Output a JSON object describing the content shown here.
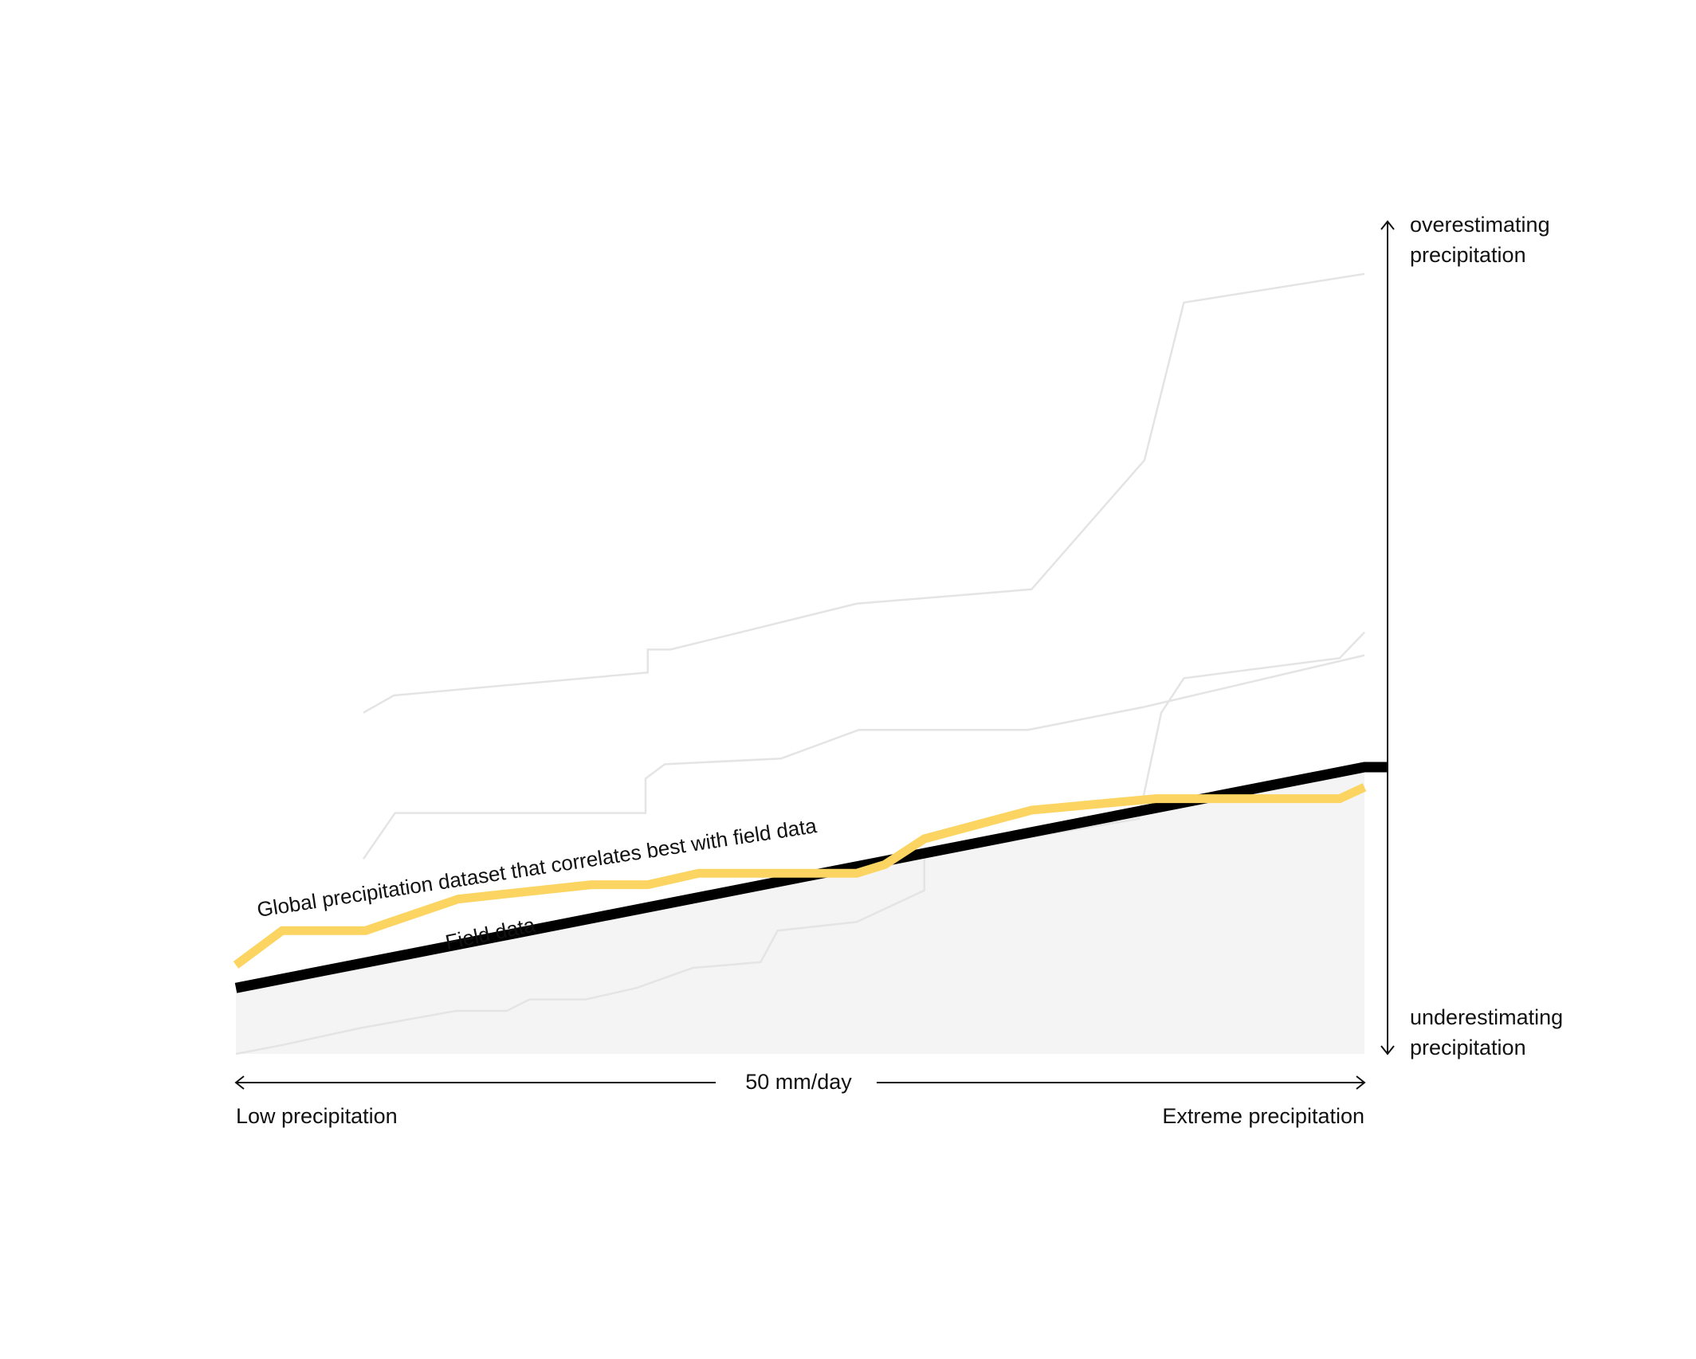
{
  "chart_data": {
    "type": "line",
    "title": "",
    "xlabel": "50 mm/day",
    "x_range_labels": {
      "low": "Low precipitation",
      "high": "Extreme precipitation"
    },
    "y_direction_labels": {
      "top_line1": "overestimating",
      "top_line2": "precipitation",
      "bottom_line1": "underestimating",
      "bottom_line2": "precipitation"
    },
    "annotations": {
      "best_dataset": "Global precipitation dataset that correlates best with field data",
      "field_data": "Field data"
    },
    "grid": false,
    "legend": "none",
    "colors": {
      "field_data": "#000000",
      "best_dataset": "#fbd462",
      "other_datasets": "#e4e4e4",
      "field_area": "#f4f4f4",
      "axis": "#111111"
    },
    "series": [
      {
        "id": "field-data",
        "name": "Field data",
        "points": [
          [
            0,
            0.23
          ],
          [
            100,
            1.0
          ],
          [
            102,
            1.0
          ]
        ]
      },
      {
        "id": "best-dataset",
        "name": "Global precipitation dataset that correlates best with field data",
        "points": [
          [
            0,
            0.31
          ],
          [
            4.1,
            0.43
          ],
          [
            11.5,
            0.43
          ],
          [
            19.7,
            0.54
          ],
          [
            31.5,
            0.59
          ],
          [
            36.5,
            0.59
          ],
          [
            41,
            0.63
          ],
          [
            55,
            0.63
          ],
          [
            57.5,
            0.66
          ],
          [
            61,
            0.75
          ],
          [
            70.5,
            0.85
          ],
          [
            81.5,
            0.89
          ],
          [
            97.8,
            0.89
          ],
          [
            100,
            0.93
          ]
        ]
      },
      {
        "id": "other-dataset-1",
        "points": [
          [
            11.3,
            1.19
          ],
          [
            14,
            1.25
          ],
          [
            36.5,
            1.33
          ],
          [
            36.5,
            1.41
          ],
          [
            38.5,
            1.41
          ],
          [
            55,
            1.57
          ],
          [
            70.5,
            1.62
          ],
          [
            80.5,
            2.07
          ],
          [
            84,
            2.62
          ],
          [
            100,
            2.72
          ]
        ]
      },
      {
        "id": "other-dataset-2",
        "points": [
          [
            11.3,
            0.68
          ],
          [
            14.1,
            0.84
          ],
          [
            36.3,
            0.84
          ],
          [
            36.3,
            0.96
          ],
          [
            38,
            1.01
          ],
          [
            48.3,
            1.03
          ],
          [
            55.2,
            1.13
          ],
          [
            70.2,
            1.13
          ],
          [
            80.5,
            1.21
          ],
          [
            100,
            1.39
          ]
        ]
      },
      {
        "id": "other-dataset-3",
        "points": [
          [
            0,
            0.0
          ],
          [
            4,
            0.03
          ],
          [
            11,
            0.09
          ],
          [
            19.5,
            0.15
          ],
          [
            24,
            0.15
          ],
          [
            26,
            0.19
          ],
          [
            31,
            0.19
          ],
          [
            35.5,
            0.23
          ],
          [
            40.5,
            0.3
          ],
          [
            46.5,
            0.32
          ],
          [
            48,
            0.43
          ],
          [
            55,
            0.46
          ],
          [
            61,
            0.57
          ],
          [
            61,
            0.69
          ],
          [
            71,
            0.76
          ],
          [
            80,
            0.82
          ],
          [
            82,
            1.19
          ],
          [
            84,
            1.31
          ],
          [
            97.8,
            1.38
          ],
          [
            100,
            1.47
          ]
        ]
      }
    ],
    "ylim": [
      0,
      2.93
    ],
    "xlim": [
      0,
      100
    ]
  }
}
